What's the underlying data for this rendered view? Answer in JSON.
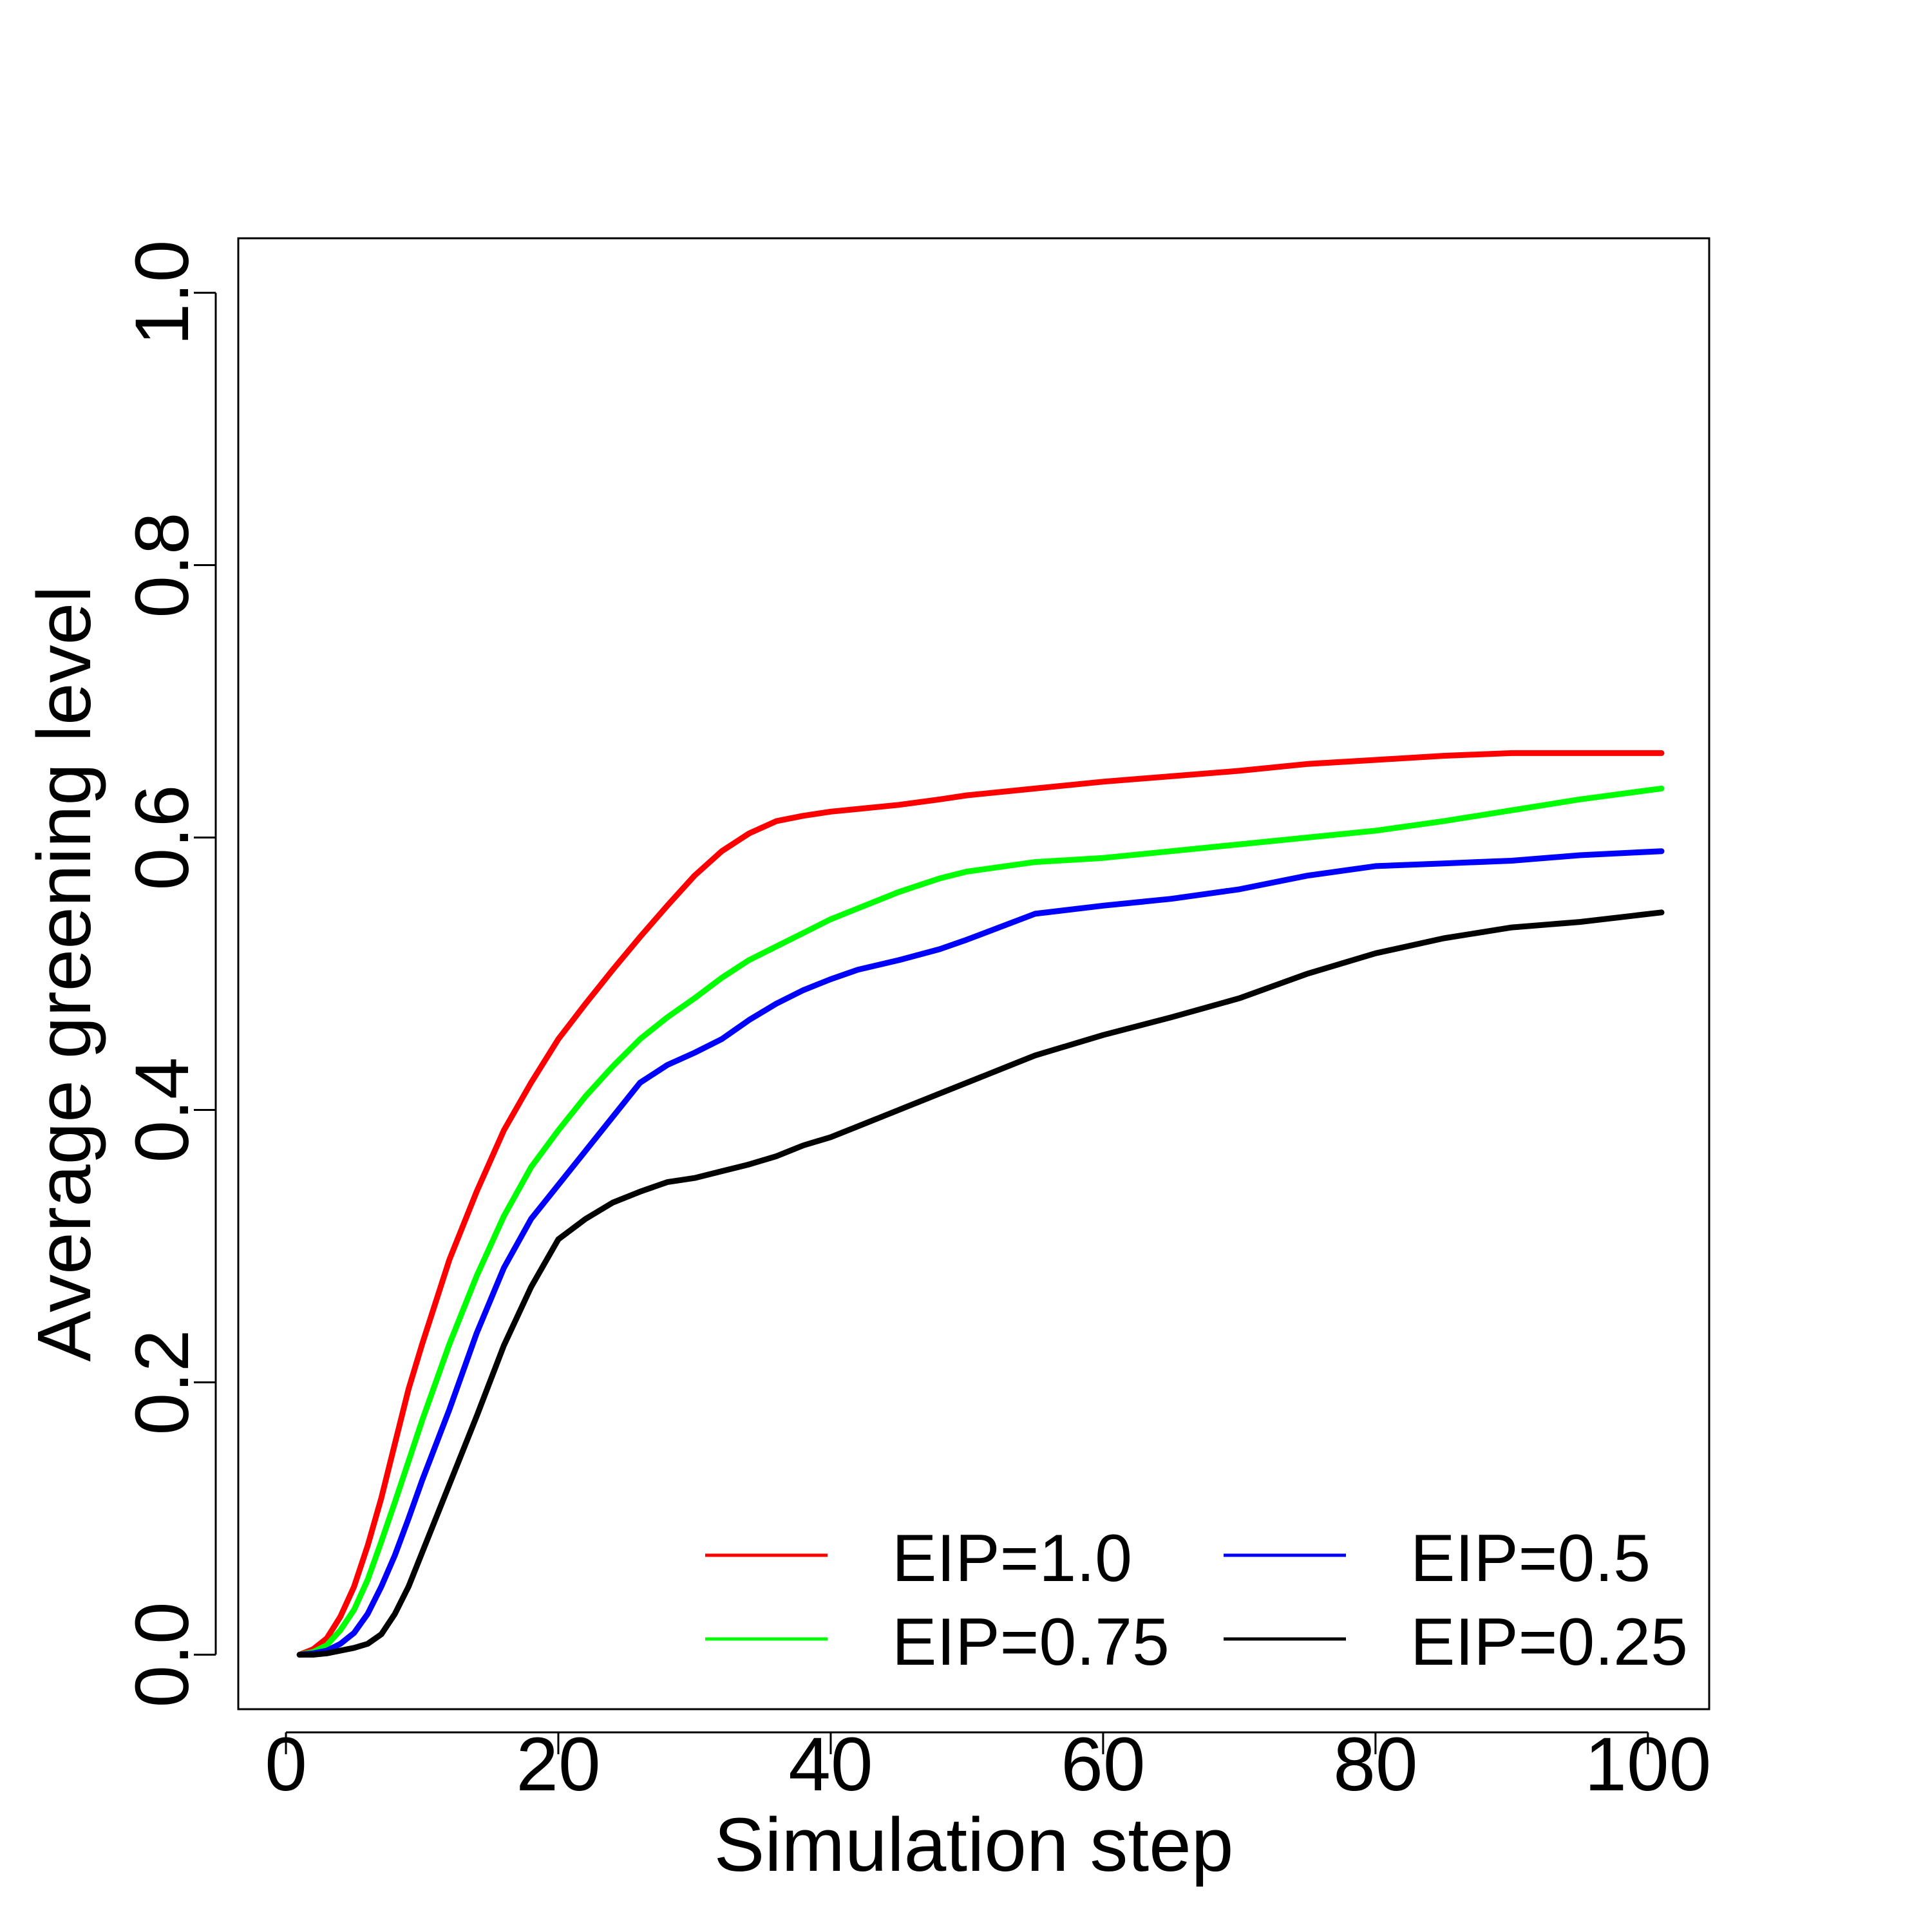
{
  "chart_data": {
    "type": "line",
    "title": "",
    "xlabel": "Simulation step",
    "ylabel": "Average greening level",
    "xlim": [
      -3.5,
      104.5
    ],
    "ylim": [
      -0.04,
      1.04
    ],
    "x_ticks": [
      0,
      20,
      40,
      60,
      80,
      100
    ],
    "x_tick_labels": [
      "0",
      "20",
      "40",
      "60",
      "80",
      "100"
    ],
    "y_ticks": [
      0.0,
      0.2,
      0.4,
      0.6,
      0.8,
      1.0
    ],
    "y_tick_labels": [
      "0.0",
      "0.2",
      "0.4",
      "0.6",
      "0.8",
      "1.0"
    ],
    "grid": false,
    "legend_position": "bottom-right",
    "x": [
      1,
      2,
      3,
      4,
      5,
      6,
      7,
      8,
      9,
      10,
      12,
      14,
      16,
      18,
      20,
      22,
      24,
      26,
      28,
      30,
      32,
      34,
      36,
      38,
      40,
      42,
      45,
      48,
      50,
      55,
      60,
      65,
      70,
      75,
      80,
      85,
      90,
      95,
      101
    ],
    "series": [
      {
        "name": "EIP=1.0",
        "color": "#ff0000",
        "values": [
          0.0,
          0.004,
          0.012,
          0.028,
          0.05,
          0.08,
          0.115,
          0.155,
          0.195,
          0.228,
          0.29,
          0.34,
          0.385,
          0.42,
          0.452,
          0.478,
          0.503,
          0.527,
          0.55,
          0.572,
          0.59,
          0.603,
          0.612,
          0.616,
          0.619,
          0.621,
          0.624,
          0.628,
          0.631,
          0.636,
          0.641,
          0.645,
          0.649,
          0.654,
          0.657,
          0.66,
          0.662,
          0.662,
          0.662
        ]
      },
      {
        "name": "EIP=0.75",
        "color": "#00ff00",
        "values": [
          0.0,
          0.002,
          0.007,
          0.018,
          0.033,
          0.055,
          0.083,
          0.112,
          0.142,
          0.172,
          0.228,
          0.278,
          0.322,
          0.358,
          0.385,
          0.41,
          0.432,
          0.452,
          0.468,
          0.482,
          0.497,
          0.51,
          0.52,
          0.53,
          0.54,
          0.548,
          0.56,
          0.57,
          0.575,
          0.582,
          0.585,
          0.59,
          0.595,
          0.6,
          0.605,
          0.612,
          0.62,
          0.628,
          0.636
        ]
      },
      {
        "name": "EIP=0.5",
        "color": "#0000ff",
        "values": [
          0.0,
          0.001,
          0.003,
          0.008,
          0.016,
          0.03,
          0.05,
          0.073,
          0.1,
          0.128,
          0.18,
          0.236,
          0.284,
          0.32,
          0.345,
          0.37,
          0.395,
          0.42,
          0.433,
          0.442,
          0.452,
          0.466,
          0.478,
          0.488,
          0.496,
          0.503,
          0.51,
          0.518,
          0.525,
          0.544,
          0.55,
          0.555,
          0.562,
          0.572,
          0.579,
          0.581,
          0.583,
          0.587,
          0.59
        ]
      },
      {
        "name": "EIP=0.25",
        "color": "#000000",
        "values": [
          0.0,
          0.0,
          0.001,
          0.003,
          0.005,
          0.008,
          0.015,
          0.03,
          0.05,
          0.075,
          0.125,
          0.175,
          0.227,
          0.27,
          0.305,
          0.32,
          0.332,
          0.34,
          0.347,
          0.35,
          0.355,
          0.36,
          0.366,
          0.374,
          0.38,
          0.388,
          0.4,
          0.412,
          0.42,
          0.44,
          0.455,
          0.468,
          0.482,
          0.5,
          0.515,
          0.526,
          0.534,
          0.538,
          0.545
        ]
      }
    ]
  }
}
